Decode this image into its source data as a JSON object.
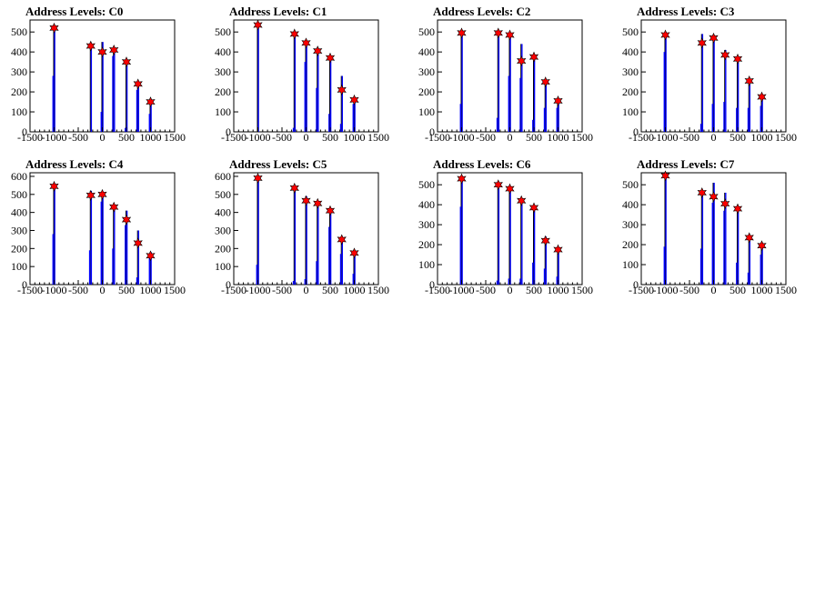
{
  "chart_data": [
    {
      "type": "bar",
      "title": "Address Levels: C0",
      "xlim": [
        -1500,
        1500
      ],
      "ylim": [
        0,
        560
      ],
      "xticks": [
        "-1500",
        "-1000",
        "-500",
        "0",
        "500",
        "1000",
        "1500"
      ],
      "yticks": [
        "0",
        "100",
        "200",
        "300",
        "400",
        "500"
      ],
      "ytick_values": [
        0,
        100,
        200,
        300,
        400,
        500
      ],
      "bars": [
        {
          "x": -1000,
          "y": 520,
          "y2": 280
        },
        {
          "x": -240,
          "y": 430
        },
        {
          "x": 0,
          "y": 450,
          "y2": 100
        },
        {
          "x": 240,
          "y": 410,
          "y2": 380
        },
        {
          "x": 500,
          "y": 350,
          "y2": 20
        },
        {
          "x": 740,
          "y": 240,
          "y2": 210
        },
        {
          "x": 1000,
          "y": 150,
          "y2": 90
        }
      ],
      "peaks": [
        {
          "x": -1000,
          "y": 520
        },
        {
          "x": -240,
          "y": 430
        },
        {
          "x": 0,
          "y": 400
        },
        {
          "x": 240,
          "y": 410
        },
        {
          "x": 500,
          "y": 350
        },
        {
          "x": 740,
          "y": 240
        },
        {
          "x": 1000,
          "y": 150
        }
      ]
    },
    {
      "type": "bar",
      "title": "Address Levels: C1",
      "xlim": [
        -1500,
        1500
      ],
      "ylim": [
        0,
        560
      ],
      "xticks": [
        "-1500",
        "-1000",
        "-500",
        "0",
        "500",
        "1000",
        "1500"
      ],
      "yticks": [
        "0",
        "100",
        "200",
        "300",
        "400",
        "500"
      ],
      "ytick_values": [
        0,
        100,
        200,
        300,
        400,
        500
      ],
      "bars": [
        {
          "x": -1000,
          "y": 540
        },
        {
          "x": -240,
          "y": 490,
          "y2": 20
        },
        {
          "x": 0,
          "y": 440,
          "y2": 350
        },
        {
          "x": 240,
          "y": 410,
          "y2": 220
        },
        {
          "x": 500,
          "y": 360,
          "y2": 90
        },
        {
          "x": 740,
          "y": 280,
          "y2": 40
        },
        {
          "x": 1000,
          "y": 160,
          "y2": 140
        }
      ],
      "peaks": [
        {
          "x": -1000,
          "y": 535
        },
        {
          "x": -240,
          "y": 490
        },
        {
          "x": 0,
          "y": 445
        },
        {
          "x": 240,
          "y": 405
        },
        {
          "x": 500,
          "y": 370
        },
        {
          "x": 740,
          "y": 210
        },
        {
          "x": 1000,
          "y": 160
        }
      ]
    },
    {
      "type": "bar",
      "title": "Address Levels: C2",
      "xlim": [
        -1500,
        1500
      ],
      "ylim": [
        0,
        560
      ],
      "xticks": [
        "-1500",
        "-1000",
        "-500",
        "0",
        "500",
        "1000",
        "1500"
      ],
      "yticks": [
        "0",
        "100",
        "200",
        "300",
        "400",
        "500"
      ],
      "ytick_values": [
        0,
        100,
        200,
        300,
        400,
        500
      ],
      "bars": [
        {
          "x": -1000,
          "y": 500,
          "y2": 140
        },
        {
          "x": -240,
          "y": 490,
          "y2": 70
        },
        {
          "x": 0,
          "y": 485,
          "y2": 280
        },
        {
          "x": 240,
          "y": 440,
          "y2": 270
        },
        {
          "x": 500,
          "y": 380,
          "y2": 60
        },
        {
          "x": 740,
          "y": 240,
          "y2": 120
        },
        {
          "x": 1000,
          "y": 155,
          "y2": 120
        }
      ],
      "peaks": [
        {
          "x": -1000,
          "y": 495
        },
        {
          "x": -240,
          "y": 495
        },
        {
          "x": 0,
          "y": 485
        },
        {
          "x": 240,
          "y": 355
        },
        {
          "x": 500,
          "y": 375
        },
        {
          "x": 740,
          "y": 250
        },
        {
          "x": 1000,
          "y": 155
        }
      ]
    },
    {
      "type": "bar",
      "title": "Address Levels: C3",
      "xlim": [
        -1500,
        1500
      ],
      "ylim": [
        0,
        560
      ],
      "xticks": [
        "-1500",
        "-1000",
        "-500",
        "0",
        "500",
        "1000",
        "1500"
      ],
      "yticks": [
        "0",
        "100",
        "200",
        "300",
        "400",
        "500"
      ],
      "ytick_values": [
        0,
        100,
        200,
        300,
        400,
        500
      ],
      "bars": [
        {
          "x": -1000,
          "y": 500,
          "y2": 400
        },
        {
          "x": -240,
          "y": 490,
          "y2": 40
        },
        {
          "x": 0,
          "y": 470,
          "y2": 140
        },
        {
          "x": 240,
          "y": 410,
          "y2": 150
        },
        {
          "x": 500,
          "y": 370,
          "y2": 120
        },
        {
          "x": 740,
          "y": 240,
          "y2": 120
        },
        {
          "x": 1000,
          "y": 175,
          "y2": 130
        }
      ],
      "peaks": [
        {
          "x": -1000,
          "y": 485
        },
        {
          "x": -240,
          "y": 445
        },
        {
          "x": 0,
          "y": 470
        },
        {
          "x": 240,
          "y": 385
        },
        {
          "x": 500,
          "y": 365
        },
        {
          "x": 740,
          "y": 255
        },
        {
          "x": 1000,
          "y": 175
        }
      ]
    },
    {
      "type": "bar",
      "title": "Address Levels: C4",
      "xlim": [
        -1500,
        1500
      ],
      "ylim": [
        0,
        620
      ],
      "xticks": [
        "-1500",
        "-1000",
        "-500",
        "0",
        "500",
        "1000",
        "1500"
      ],
      "yticks": [
        "0",
        "100",
        "200",
        "300",
        "400",
        "500",
        "600"
      ],
      "ytick_values": [
        0,
        100,
        200,
        300,
        400,
        500,
        600
      ],
      "bars": [
        {
          "x": -1000,
          "y": 560,
          "y2": 280
        },
        {
          "x": -240,
          "y": 520,
          "y2": 190
        },
        {
          "x": 0,
          "y": 500,
          "y2": 460
        },
        {
          "x": 240,
          "y": 430,
          "y2": 200
        },
        {
          "x": 500,
          "y": 410,
          "y2": 330
        },
        {
          "x": 740,
          "y": 300,
          "y2": 40
        },
        {
          "x": 1000,
          "y": 180,
          "y2": 150
        }
      ],
      "peaks": [
        {
          "x": -1000,
          "y": 545
        },
        {
          "x": -240,
          "y": 495
        },
        {
          "x": 0,
          "y": 500
        },
        {
          "x": 240,
          "y": 430
        },
        {
          "x": 500,
          "y": 360
        },
        {
          "x": 740,
          "y": 230
        },
        {
          "x": 1000,
          "y": 160
        }
      ]
    },
    {
      "type": "bar",
      "title": "Address Levels: C5",
      "xlim": [
        -1500,
        1500
      ],
      "ylim": [
        0,
        620
      ],
      "xticks": [
        "-1500",
        "-1000",
        "-500",
        "0",
        "500",
        "1000",
        "1500"
      ],
      "yticks": [
        "0",
        "100",
        "200",
        "300",
        "400",
        "500",
        "600"
      ],
      "ytick_values": [
        0,
        100,
        200,
        300,
        400,
        500,
        600
      ],
      "bars": [
        {
          "x": -1000,
          "y": 590,
          "y2": 110
        },
        {
          "x": -240,
          "y": 530,
          "y2": 20
        },
        {
          "x": 0,
          "y": 490,
          "y2": 30
        },
        {
          "x": 240,
          "y": 460,
          "y2": 130
        },
        {
          "x": 500,
          "y": 410,
          "y2": 320
        },
        {
          "x": 740,
          "y": 260,
          "y2": 170
        },
        {
          "x": 1000,
          "y": 180,
          "y2": 60
        }
      ],
      "peaks": [
        {
          "x": -1000,
          "y": 590
        },
        {
          "x": -240,
          "y": 535
        },
        {
          "x": 0,
          "y": 465
        },
        {
          "x": 240,
          "y": 450
        },
        {
          "x": 500,
          "y": 410
        },
        {
          "x": 740,
          "y": 250
        },
        {
          "x": 1000,
          "y": 175
        }
      ]
    },
    {
      "type": "bar",
      "title": "Address Levels: C6",
      "xlim": [
        -1500,
        1500
      ],
      "ylim": [
        0,
        560
      ],
      "xticks": [
        "-1500",
        "-1000",
        "-500",
        "0",
        "500",
        "1000",
        "1500"
      ],
      "yticks": [
        "0",
        "100",
        "200",
        "300",
        "400",
        "500"
      ],
      "ytick_values": [
        0,
        100,
        200,
        300,
        400,
        500
      ],
      "bars": [
        {
          "x": -1000,
          "y": 540,
          "y2": 390
        },
        {
          "x": -240,
          "y": 500,
          "y2": 20
        },
        {
          "x": 0,
          "y": 480,
          "y2": 30
        },
        {
          "x": 240,
          "y": 430,
          "y2": 30
        },
        {
          "x": 500,
          "y": 390,
          "y2": 110
        },
        {
          "x": 740,
          "y": 240,
          "y2": 80
        },
        {
          "x": 1000,
          "y": 175,
          "y2": 40
        }
      ],
      "peaks": [
        {
          "x": -1000,
          "y": 530
        },
        {
          "x": -240,
          "y": 500
        },
        {
          "x": 0,
          "y": 480
        },
        {
          "x": 240,
          "y": 420
        },
        {
          "x": 500,
          "y": 385
        },
        {
          "x": 740,
          "y": 220
        },
        {
          "x": 1000,
          "y": 175
        }
      ]
    },
    {
      "type": "bar",
      "title": "Address Levels: C7",
      "xlim": [
        -1500,
        1500
      ],
      "ylim": [
        0,
        560
      ],
      "xticks": [
        "-1500",
        "-1000",
        "-500",
        "0",
        "500",
        "1000",
        "1500"
      ],
      "yticks": [
        "0",
        "100",
        "200",
        "300",
        "400",
        "500"
      ],
      "ytick_values": [
        0,
        100,
        200,
        300,
        400,
        500
      ],
      "bars": [
        {
          "x": -1000,
          "y": 540,
          "y2": 190
        },
        {
          "x": -240,
          "y": 470,
          "y2": 180
        },
        {
          "x": 0,
          "y": 510,
          "y2": 410
        },
        {
          "x": 240,
          "y": 460,
          "y2": 370
        },
        {
          "x": 500,
          "y": 390,
          "y2": 110
        },
        {
          "x": 740,
          "y": 240,
          "y2": 60
        },
        {
          "x": 1000,
          "y": 200,
          "y2": 150
        }
      ],
      "peaks": [
        {
          "x": -1000,
          "y": 545
        },
        {
          "x": -240,
          "y": 460
        },
        {
          "x": 0,
          "y": 440
        },
        {
          "x": 240,
          "y": 405
        },
        {
          "x": 500,
          "y": 380
        },
        {
          "x": 740,
          "y": 235
        },
        {
          "x": 1000,
          "y": 195
        }
      ]
    }
  ],
  "colors": {
    "bar": "#0000ff",
    "bar_secondary": "#000000",
    "marker_fill": "#ff0000",
    "marker_stroke": "#000000",
    "frame": "#000000"
  }
}
